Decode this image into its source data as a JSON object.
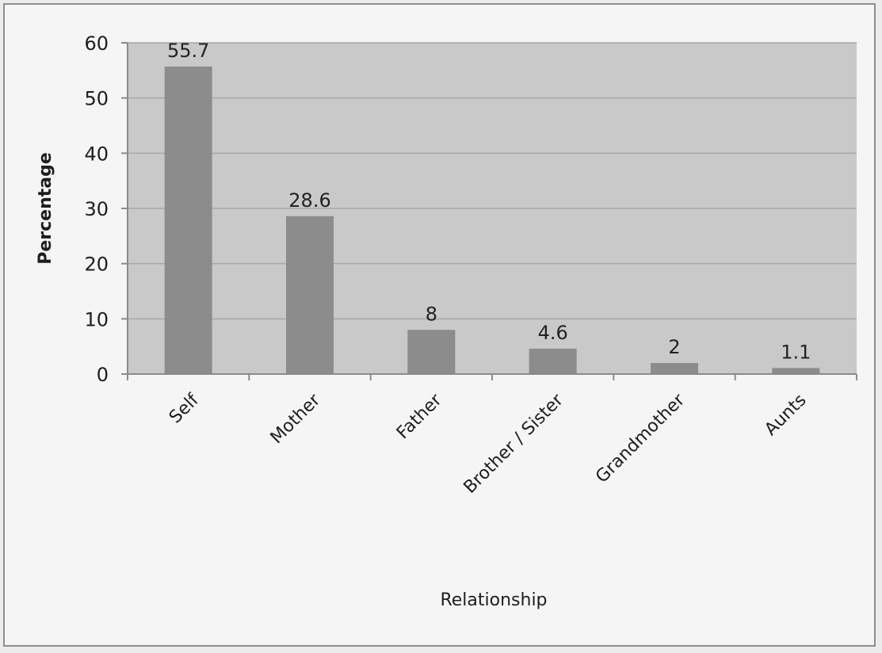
{
  "chart_data": {
    "type": "bar",
    "categories": [
      "Self",
      "Mother",
      "Father",
      "Brother / Sister",
      "Grandmother",
      "Aunts"
    ],
    "values": [
      55.7,
      28.6,
      8,
      4.6,
      2,
      1.1
    ],
    "data_labels": [
      "55.7",
      "28.6",
      "8",
      "4.6",
      "2",
      "1.1"
    ],
    "title": "",
    "xlabel": "Relationship",
    "ylabel": "Percentage",
    "ylim": [
      0,
      60
    ],
    "yticks": [
      0,
      10,
      20,
      30,
      40,
      50,
      60
    ],
    "grid": true,
    "legend": "none",
    "colors": {
      "bar": "#8c8c8c",
      "plot_background": "#c9c9c9",
      "gridline": "#a8a8a8",
      "axis": "#8a8a8a"
    }
  }
}
